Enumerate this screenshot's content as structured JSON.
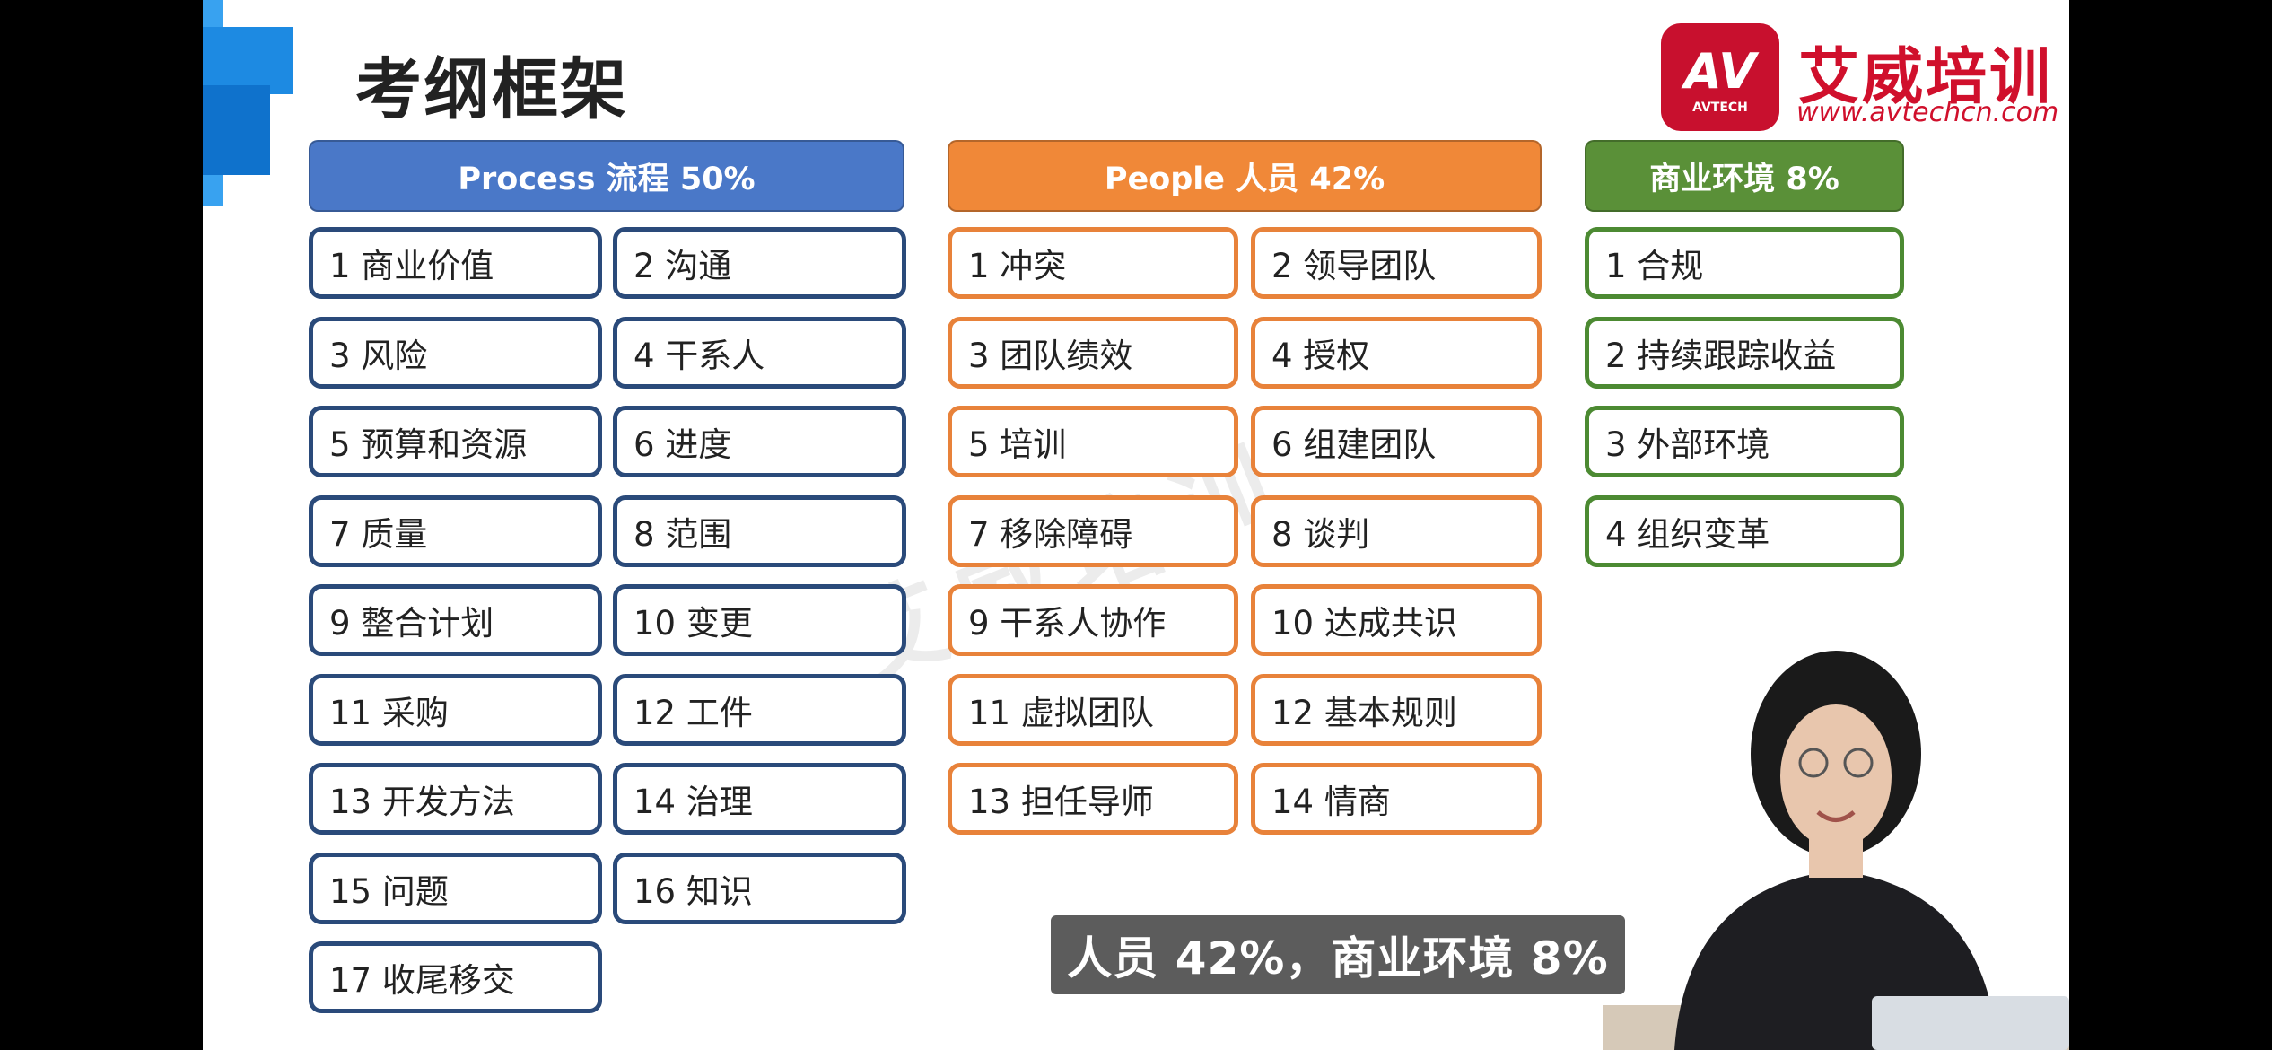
{
  "slide": {
    "title": "考纲框架"
  },
  "logo": {
    "mark_text": "AV",
    "mark_subtext": "AVTECH",
    "name": "艾威培训",
    "url": "www.avtechcn.com"
  },
  "columns": {
    "process": {
      "header": "Process 流程 50%",
      "items": [
        "1 商业价值",
        "2 沟通",
        "3 风险",
        "4 干系人",
        "5 预算和资源",
        "6 进度",
        "7 质量",
        "8 范围",
        "9 整合计划",
        "10 变更",
        "11 采购",
        "12 工件",
        "13 开发方法",
        "14 治理",
        "15 问题",
        "16 知识",
        "17 收尾移交"
      ]
    },
    "people": {
      "header": "People 人员 42%",
      "items": [
        "1 冲突",
        "2 领导团队",
        "3 团队绩效",
        "4 授权",
        "5 培训",
        "6 组建团队",
        "7 移除障碍",
        "8 谈判",
        "9 干系人协作",
        "10 达成共识",
        "11 虚拟团队",
        "12 基本规则",
        "13 担任导师",
        "14 情商"
      ]
    },
    "business": {
      "header": "商业环境 8%",
      "items": [
        "1 合规",
        "2 持续跟踪收益",
        "3 外部环境",
        "4 组织变革"
      ]
    }
  },
  "subtitle": "人员 42%，商业环境 8%",
  "watermark": "艾威培训",
  "colors": {
    "process": "#4a78c8",
    "people": "#f08838",
    "business": "#5a9038",
    "brand_red": "#c8102e"
  }
}
